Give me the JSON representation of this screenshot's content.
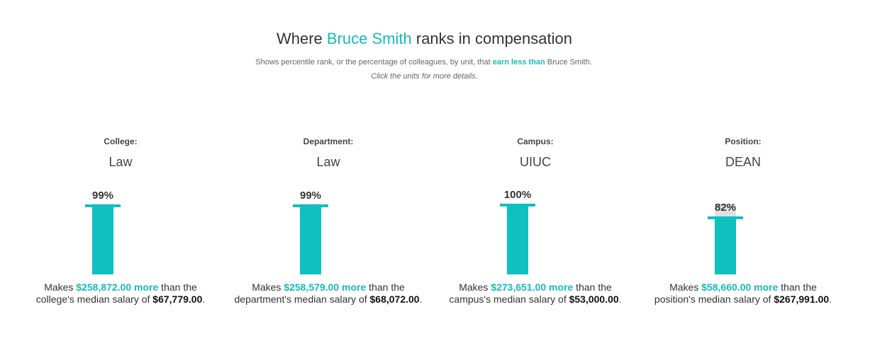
{
  "header": {
    "title_prefix": "Where ",
    "title_name": "Bruce Smith",
    "title_suffix": " ranks in compensation",
    "subtitle_prefix": "Shows percentile rank, or the percentage of colleagues, by unit, that ",
    "subtitle_highlight": "earn less than",
    "subtitle_suffix": " Bruce Smith.",
    "hint": "Click the units for more details."
  },
  "colors": {
    "accent": "#1ab9b9",
    "bar": "#0fc0c0",
    "bar_background": "#e0e0e0"
  },
  "units": [
    {
      "label": "College:",
      "name": "Law",
      "percentile": 99,
      "percentile_text": "99%",
      "makes": "Makes ",
      "amount_more": "$258,872.00 more",
      "than_the": " than the",
      "median_prefix": "college's median salary of ",
      "median_value": "$67,779.00",
      "period": "."
    },
    {
      "label": "Department:",
      "name": "Law",
      "percentile": 99,
      "percentile_text": "99%",
      "makes": "Makes ",
      "amount_more": "$258,579.00 more",
      "than_the": " than the",
      "median_prefix": "department's median salary of ",
      "median_value": "$68,072.00",
      "period": "."
    },
    {
      "label": "Campus:",
      "name": "UIUC",
      "percentile": 100,
      "percentile_text": "100%",
      "makes": "Makes ",
      "amount_more": "$273,651.00 more",
      "than_the": " than the",
      "median_prefix": "campus's median salary of ",
      "median_value": "$53,000.00",
      "period": "."
    },
    {
      "label": "Position:",
      "name": "DEAN",
      "percentile": 82,
      "percentile_text": "82%",
      "makes": "Makes ",
      "amount_more": "$58,660.00 more",
      "than_the": " than the",
      "median_prefix": "position's median salary of ",
      "median_value": "$267,991.00",
      "period": "."
    }
  ]
}
